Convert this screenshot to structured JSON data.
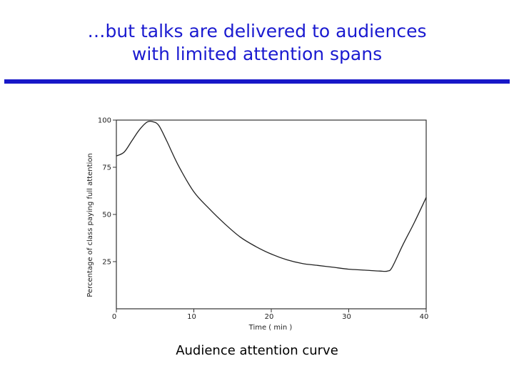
{
  "slide": {
    "title_line1": "…but talks are delivered to audiences",
    "title_line2": "with limited attention spans",
    "caption": "Audience attention curve",
    "title_color": "#1a1ad0",
    "rule_color": "#1818c8"
  },
  "chart_data": {
    "type": "line",
    "title": "",
    "xlabel": "Time ( min )",
    "ylabel": "Percentage of class paying full attention",
    "xlim": [
      0,
      40
    ],
    "ylim": [
      0,
      100
    ],
    "xticks": [
      0,
      10,
      20,
      30,
      40
    ],
    "yticks": [
      25,
      50,
      75,
      100
    ],
    "ytick_labels": [
      "25",
      "50",
      "75",
      "100"
    ],
    "xtick_labels": [
      "0",
      "10",
      "20",
      "30",
      "40"
    ],
    "grid": false,
    "series": [
      {
        "x": [
          0,
          1,
          2,
          3,
          4,
          4.8,
          5.5,
          6.5,
          8,
          10,
          12,
          14,
          16,
          18,
          20,
          22,
          24,
          26,
          28,
          30,
          32,
          34,
          35,
          35.6,
          37,
          38.5,
          40
        ],
        "y": [
          81,
          83,
          89,
          95,
          99,
          99,
          97,
          89,
          76,
          62,
          53,
          45,
          38,
          33,
          29,
          26,
          24,
          23,
          22,
          21,
          20.5,
          20,
          20,
          22,
          34,
          46,
          59
        ]
      }
    ]
  }
}
